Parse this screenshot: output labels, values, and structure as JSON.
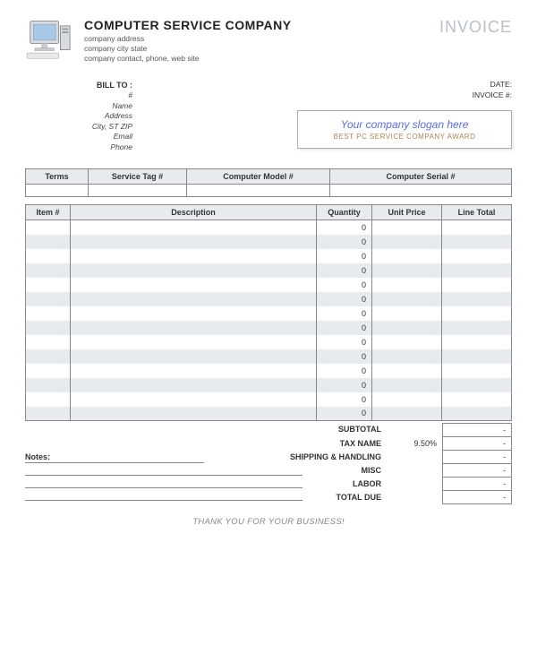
{
  "header": {
    "company_name": "COMPUTER SERVICE COMPANY",
    "lines": [
      "company address",
      "company city state",
      "company contact, phone, web site"
    ],
    "invoice_title": "INVOICE"
  },
  "meta": {
    "date_label": "DATE:",
    "invoice_no_label": "INVOICE #:"
  },
  "billto": {
    "title": "BILL TO :",
    "fields": [
      "#",
      "Name",
      "Address",
      "City, ST ZIP",
      "Email",
      "Phone"
    ]
  },
  "slogan": {
    "main": "Your company slogan here",
    "sub": "BEST PC SERVICE COMPANY AWARD"
  },
  "meta_table": {
    "headers": [
      "Terms",
      "Service Tag #",
      "Computer Model #",
      "Computer Serial #"
    ],
    "col_widths": [
      "70px",
      "110px",
      "160px",
      "auto"
    ]
  },
  "items_table": {
    "headers": [
      "Item #",
      "Description",
      "Quantity",
      "Unit Price",
      "Line Total"
    ],
    "row_count": 14,
    "qty_placeholder": "0",
    "stripe_color": "#e7ebef",
    "border_color": "#888888"
  },
  "totals": {
    "rows": [
      {
        "label": "SUBTOTAL",
        "val": "-"
      },
      {
        "label": "TAX NAME",
        "pct": "9.50%",
        "val": "-"
      },
      {
        "label": "SHIPPING & HANDLING",
        "val": "-"
      },
      {
        "label": "MISC",
        "val": "-"
      },
      {
        "label": "LABOR",
        "val": "-"
      },
      {
        "label": "TOTAL DUE",
        "val": "-"
      }
    ]
  },
  "notes_label": "Notes:",
  "footer": "THANK YOU FOR YOUR BUSINESS!",
  "colors": {
    "header_bg": "#e7ebef",
    "title_gray": "#b9c0c8",
    "slogan_blue": "#5a6fd6",
    "slogan_gold": "#a58a5a"
  }
}
